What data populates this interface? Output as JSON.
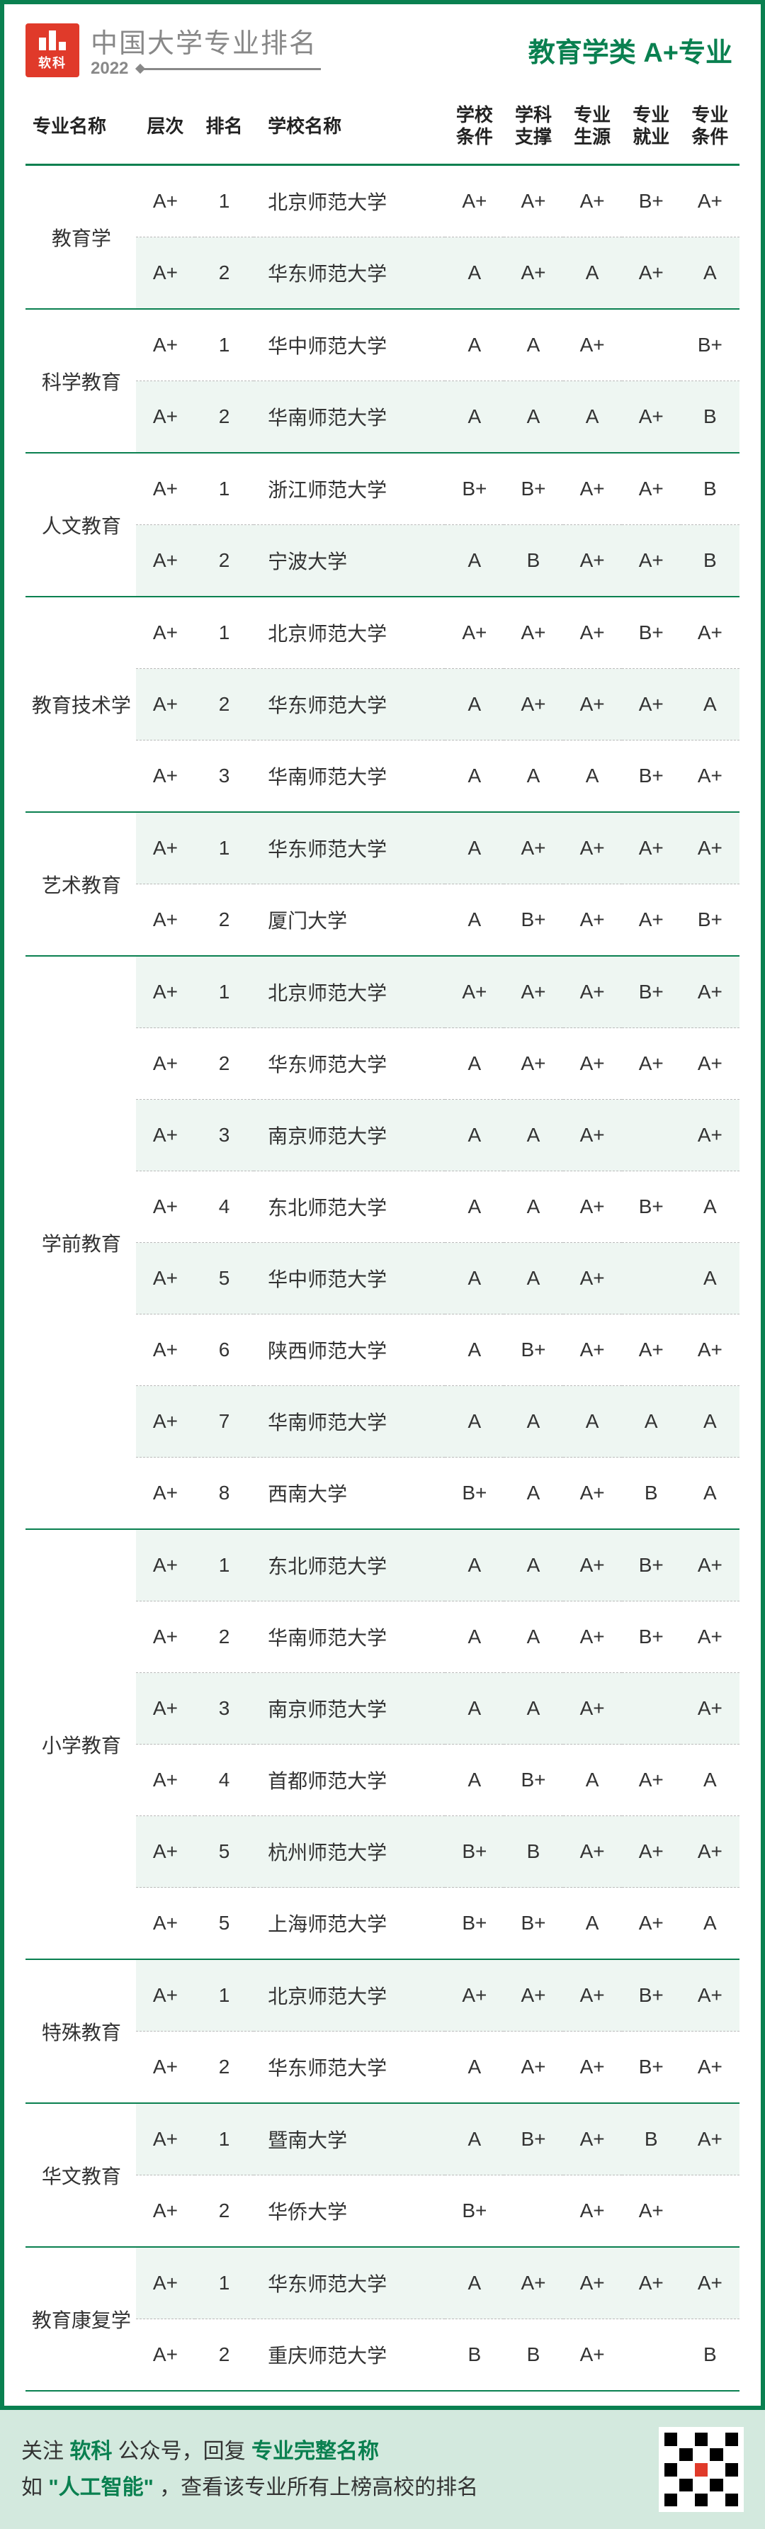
{
  "header": {
    "logo_text": "软科",
    "title": "中国大学专业排名",
    "year": "2022",
    "category": "教育学类  A+专业"
  },
  "columns": {
    "major": "专业名称",
    "tier": "层次",
    "rank": "排名",
    "school": "学校名称",
    "c1a": "学校",
    "c1b": "条件",
    "c2a": "学科",
    "c2b": "支撑",
    "c3a": "专业",
    "c3b": "生源",
    "c4a": "专业",
    "c4b": "就业",
    "c5a": "专业",
    "c5b": "条件"
  },
  "groups": [
    {
      "major": "教育学",
      "rows": [
        {
          "tier": "A+",
          "rank": "1",
          "school": "北京师范大学",
          "g": [
            "A+",
            "A+",
            "A+",
            "B+",
            "A+"
          ]
        },
        {
          "tier": "A+",
          "rank": "2",
          "school": "华东师范大学",
          "g": [
            "A",
            "A+",
            "A",
            "A+",
            "A"
          ]
        }
      ]
    },
    {
      "major": "科学教育",
      "rows": [
        {
          "tier": "A+",
          "rank": "1",
          "school": "华中师范大学",
          "g": [
            "A",
            "A",
            "A+",
            "",
            "B+"
          ]
        },
        {
          "tier": "A+",
          "rank": "2",
          "school": "华南师范大学",
          "g": [
            "A",
            "A",
            "A",
            "A+",
            "B"
          ]
        }
      ]
    },
    {
      "major": "人文教育",
      "rows": [
        {
          "tier": "A+",
          "rank": "1",
          "school": "浙江师范大学",
          "g": [
            "B+",
            "B+",
            "A+",
            "A+",
            "B"
          ]
        },
        {
          "tier": "A+",
          "rank": "2",
          "school": "宁波大学",
          "g": [
            "A",
            "B",
            "A+",
            "A+",
            "B"
          ]
        }
      ]
    },
    {
      "major": "教育技术学",
      "rows": [
        {
          "tier": "A+",
          "rank": "1",
          "school": "北京师范大学",
          "g": [
            "A+",
            "A+",
            "A+",
            "B+",
            "A+"
          ]
        },
        {
          "tier": "A+",
          "rank": "2",
          "school": "华东师范大学",
          "g": [
            "A",
            "A+",
            "A+",
            "A+",
            "A"
          ]
        },
        {
          "tier": "A+",
          "rank": "3",
          "school": "华南师范大学",
          "g": [
            "A",
            "A",
            "A",
            "B+",
            "A+"
          ]
        }
      ]
    },
    {
      "major": "艺术教育",
      "rows": [
        {
          "tier": "A+",
          "rank": "1",
          "school": "华东师范大学",
          "g": [
            "A",
            "A+",
            "A+",
            "A+",
            "A+"
          ]
        },
        {
          "tier": "A+",
          "rank": "2",
          "school": "厦门大学",
          "g": [
            "A",
            "B+",
            "A+",
            "A+",
            "B+"
          ]
        }
      ]
    },
    {
      "major": "学前教育",
      "rows": [
        {
          "tier": "A+",
          "rank": "1",
          "school": "北京师范大学",
          "g": [
            "A+",
            "A+",
            "A+",
            "B+",
            "A+"
          ]
        },
        {
          "tier": "A+",
          "rank": "2",
          "school": "华东师范大学",
          "g": [
            "A",
            "A+",
            "A+",
            "A+",
            "A+"
          ]
        },
        {
          "tier": "A+",
          "rank": "3",
          "school": "南京师范大学",
          "g": [
            "A",
            "A",
            "A+",
            "",
            "A+"
          ]
        },
        {
          "tier": "A+",
          "rank": "4",
          "school": "东北师范大学",
          "g": [
            "A",
            "A",
            "A+",
            "B+",
            "A"
          ]
        },
        {
          "tier": "A+",
          "rank": "5",
          "school": "华中师范大学",
          "g": [
            "A",
            "A",
            "A+",
            "",
            "A"
          ]
        },
        {
          "tier": "A+",
          "rank": "6",
          "school": "陕西师范大学",
          "g": [
            "A",
            "B+",
            "A+",
            "A+",
            "A+"
          ]
        },
        {
          "tier": "A+",
          "rank": "7",
          "school": "华南师范大学",
          "g": [
            "A",
            "A",
            "A",
            "A",
            "A"
          ]
        },
        {
          "tier": "A+",
          "rank": "8",
          "school": "西南大学",
          "g": [
            "B+",
            "A",
            "A+",
            "B",
            "A"
          ]
        }
      ]
    },
    {
      "major": "小学教育",
      "rows": [
        {
          "tier": "A+",
          "rank": "1",
          "school": "东北师范大学",
          "g": [
            "A",
            "A",
            "A+",
            "B+",
            "A+"
          ]
        },
        {
          "tier": "A+",
          "rank": "2",
          "school": "华南师范大学",
          "g": [
            "A",
            "A",
            "A+",
            "B+",
            "A+"
          ]
        },
        {
          "tier": "A+",
          "rank": "3",
          "school": "南京师范大学",
          "g": [
            "A",
            "A",
            "A+",
            "",
            "A+"
          ]
        },
        {
          "tier": "A+",
          "rank": "4",
          "school": "首都师范大学",
          "g": [
            "A",
            "B+",
            "A",
            "A+",
            "A"
          ]
        },
        {
          "tier": "A+",
          "rank": "5",
          "school": "杭州师范大学",
          "g": [
            "B+",
            "B",
            "A+",
            "A+",
            "A+"
          ]
        },
        {
          "tier": "A+",
          "rank": "5",
          "school": "上海师范大学",
          "g": [
            "B+",
            "B+",
            "A",
            "A+",
            "A"
          ]
        }
      ]
    },
    {
      "major": "特殊教育",
      "rows": [
        {
          "tier": "A+",
          "rank": "1",
          "school": "北京师范大学",
          "g": [
            "A+",
            "A+",
            "A+",
            "B+",
            "A+"
          ]
        },
        {
          "tier": "A+",
          "rank": "2",
          "school": "华东师范大学",
          "g": [
            "A",
            "A+",
            "A+",
            "B+",
            "A+"
          ]
        }
      ]
    },
    {
      "major": "华文教育",
      "rows": [
        {
          "tier": "A+",
          "rank": "1",
          "school": "暨南大学",
          "g": [
            "A",
            "B+",
            "A+",
            "B",
            "A+"
          ]
        },
        {
          "tier": "A+",
          "rank": "2",
          "school": "华侨大学",
          "g": [
            "B+",
            "",
            "A+",
            "A+",
            ""
          ]
        }
      ]
    },
    {
      "major": "教育康复学",
      "rows": [
        {
          "tier": "A+",
          "rank": "1",
          "school": "华东师范大学",
          "g": [
            "A",
            "A+",
            "A+",
            "A+",
            "A+"
          ]
        },
        {
          "tier": "A+",
          "rank": "2",
          "school": "重庆师范大学",
          "g": [
            "B",
            "B",
            "A+",
            "",
            "B"
          ]
        }
      ]
    }
  ],
  "footer": {
    "l1a": "关注 ",
    "l1b": "软科",
    "l1c": " 公众号，回复 ",
    "l1d": "专业完整名称",
    "l2a": "如 ",
    "l2b": "\"人工智能\"",
    "l2c": " ，查看该专业所有上榜高校的排名"
  }
}
